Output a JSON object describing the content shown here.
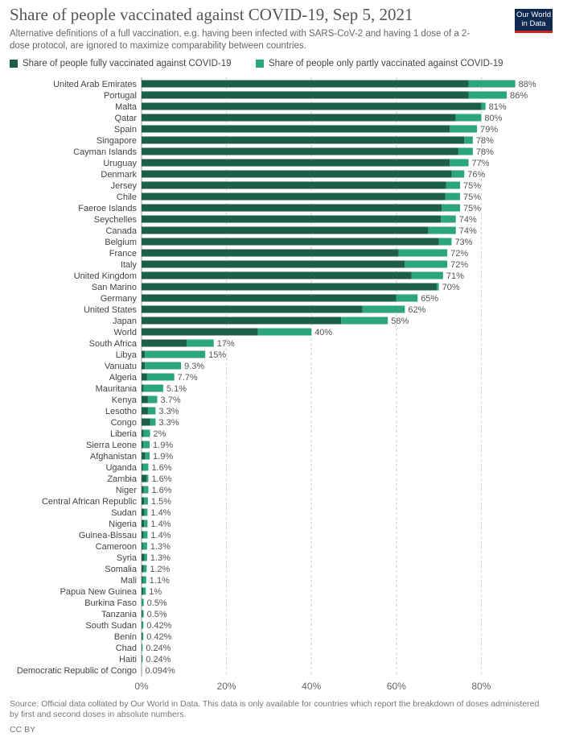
{
  "header": {
    "title": "Share of people vaccinated against COVID-19, Sep 5, 2021",
    "subtitle": "Alternative definitions of a full vaccination, e.g. having been infected with SARS-CoV-2 and having 1 dose of a 2-dose protocol, are ignored to maximize comparability between countries.",
    "logo_text": "Our World in Data"
  },
  "footer": {
    "source": "Source: Official data collated by Our World in Data. This data is only available for countries which report the breakdown of doses administered by first and second doses in absolute numbers.",
    "license": "CC BY"
  },
  "colors": {
    "fully": "#1d5e4a",
    "partly": "#2aa57d",
    "grid": "#cccccc",
    "logo_bg": "#0f2a52",
    "logo_accent": "#ce261e"
  },
  "chart_data": {
    "type": "bar",
    "orientation": "horizontal",
    "stacked": true,
    "title": "Share of people vaccinated against COVID-19, Sep 5, 2021",
    "xlim": [
      0,
      88
    ],
    "x_ticks": [
      "0%",
      "20%",
      "40%",
      "60%",
      "80%"
    ],
    "x_tick_values": [
      0,
      20,
      40,
      60,
      80
    ],
    "grid": "vertical dashed",
    "legend_placement": "top",
    "categories": [
      "United Arab Emirates",
      "Portugal",
      "Malta",
      "Qatar",
      "Spain",
      "Singapore",
      "Cayman Islands",
      "Uruguay",
      "Denmark",
      "Jersey",
      "Chile",
      "Faeroe Islands",
      "Seychelles",
      "Canada",
      "Belgium",
      "France",
      "Italy",
      "United Kingdom",
      "San Marino",
      "Germany",
      "United States",
      "Japan",
      "World",
      "South Africa",
      "Libya",
      "Vanuatu",
      "Algeria",
      "Mauritania",
      "Kenya",
      "Lesotho",
      "Congo",
      "Liberia",
      "Sierra Leone",
      "Afghanistan",
      "Uganda",
      "Zambia",
      "Niger",
      "Central African Republic",
      "Sudan",
      "Nigeria",
      "Guinea-Bissau",
      "Cameroon",
      "Syria",
      "Somalia",
      "Mali",
      "Papua New Guinea",
      "Burkina Faso",
      "Tanzania",
      "South Sudan",
      "Benin",
      "Chad",
      "Haiti",
      "Democratic Republic of Congo"
    ],
    "total_labels": [
      "88%",
      "86%",
      "81%",
      "80%",
      "79%",
      "78%",
      "78%",
      "77%",
      "76%",
      "75%",
      "75%",
      "75%",
      "74%",
      "74%",
      "73%",
      "72%",
      "72%",
      "71%",
      "70%",
      "65%",
      "62%",
      "58%",
      "40%",
      "17%",
      "15%",
      "9.3%",
      "7.7%",
      "5.1%",
      "3.7%",
      "3.3%",
      "3.3%",
      "2%",
      "1.9%",
      "1.9%",
      "1.6%",
      "1.6%",
      "1.6%",
      "1.5%",
      "1.4%",
      "1.4%",
      "1.4%",
      "1.3%",
      "1.3%",
      "1.2%",
      "1.1%",
      "1%",
      "0.5%",
      "0.5%",
      "0.42%",
      "0.42%",
      "0.24%",
      "0.24%",
      "0.094%"
    ],
    "series": [
      {
        "name": "Share of people fully vaccinated against COVID-19",
        "values": [
          77,
          77,
          80,
          74,
          72.6,
          76,
          74.6,
          72.6,
          73,
          71.7,
          71.5,
          70.7,
          70.5,
          67.5,
          70,
          60.5,
          62,
          63.6,
          69.5,
          60,
          52,
          47,
          27.4,
          10.6,
          0.8,
          0.8,
          1.3,
          0.5,
          1.5,
          1.5,
          2.0,
          0.5,
          0.4,
          0.9,
          0.3,
          1.2,
          0.5,
          0.6,
          0.7,
          0.6,
          0.5,
          0.3,
          0.7,
          0.5,
          0.3,
          0.4,
          0.1,
          0.2,
          0.1,
          0.2,
          0.1,
          0.1,
          0.05
        ]
      },
      {
        "name": "Share of people only partly vaccinated against COVID-19",
        "values": [
          11,
          9,
          1,
          6,
          6.4,
          2,
          3.4,
          4.4,
          3,
          3.3,
          3.5,
          4.3,
          3.5,
          6.5,
          3,
          11.5,
          10,
          7.4,
          0.5,
          5,
          10,
          11,
          12.6,
          6.4,
          14.2,
          8.5,
          6.4,
          4.6,
          2.2,
          1.8,
          1.3,
          1.5,
          1.5,
          1.0,
          1.3,
          0.4,
          1.1,
          0.9,
          0.7,
          0.8,
          0.9,
          1.0,
          0.6,
          0.7,
          0.8,
          0.6,
          0.4,
          0.3,
          0.32,
          0.22,
          0.14,
          0.14,
          0.044
        ]
      }
    ]
  }
}
